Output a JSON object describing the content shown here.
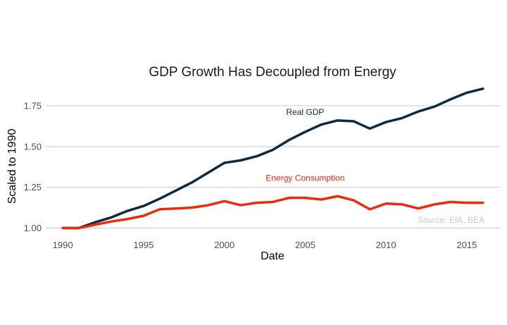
{
  "chart_data": {
    "type": "line",
    "title": "GDP Growth Has Decoupled from Energy",
    "xlabel": "Date",
    "ylabel": "Scaled to 1990",
    "xlim": [
      1990,
      2016
    ],
    "ylim": [
      1.0,
      1.85
    ],
    "x_ticks": [
      1990,
      1995,
      2000,
      2005,
      2010,
      2015
    ],
    "y_ticks": [
      1.0,
      1.25,
      1.5,
      1.75
    ],
    "y_tick_labels": [
      "1.00",
      "1.25",
      "1.50",
      "1.75"
    ],
    "grid": "horizontal",
    "x": [
      1990,
      1991,
      1992,
      1993,
      1994,
      1995,
      1996,
      1997,
      1998,
      1999,
      2000,
      2001,
      2002,
      2003,
      2004,
      2005,
      2006,
      2007,
      2008,
      2009,
      2010,
      2011,
      2012,
      2013,
      2014,
      2015,
      2016
    ],
    "series": [
      {
        "label": "Real GDP",
        "color": "#0d2a40",
        "values": [
          1.0,
          1.0,
          1.035,
          1.065,
          1.105,
          1.135,
          1.18,
          1.23,
          1.28,
          1.34,
          1.4,
          1.415,
          1.44,
          1.48,
          1.54,
          1.59,
          1.635,
          1.66,
          1.655,
          1.61,
          1.65,
          1.675,
          1.715,
          1.745,
          1.79,
          1.83,
          1.855
        ]
      },
      {
        "label": "Energy Consumption",
        "color": "#ee2a0c",
        "values": [
          1.0,
          1.0,
          1.02,
          1.04,
          1.055,
          1.075,
          1.115,
          1.12,
          1.125,
          1.14,
          1.165,
          1.14,
          1.155,
          1.16,
          1.185,
          1.185,
          1.175,
          1.195,
          1.17,
          1.115,
          1.15,
          1.145,
          1.12,
          1.145,
          1.16,
          1.155,
          1.155
        ]
      }
    ],
    "annotations": [
      {
        "text": "Real GDP",
        "x": 2005,
        "y": 1.695,
        "color": "#0d2a40"
      },
      {
        "text": "Energy Consumption",
        "x": 2005,
        "y": 1.29,
        "color": "#ee2a0c"
      }
    ],
    "caption": "Source: EIA, BEA"
  }
}
